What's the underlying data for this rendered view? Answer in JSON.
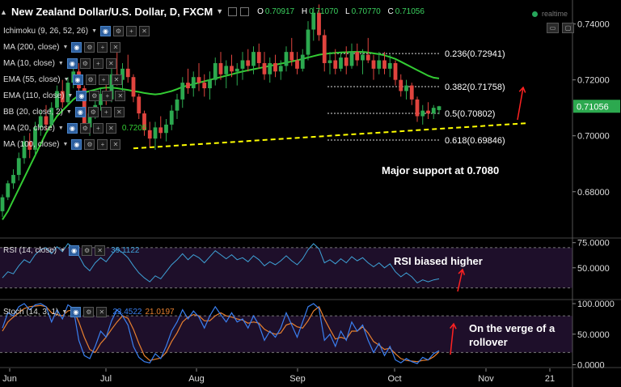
{
  "header": {
    "symbol": "New Zealand Dollar/U.S. Dollar, D, FXCM",
    "open_label": "O",
    "open": "0.70917",
    "high_label": "H",
    "high": "0.71070",
    "low_label": "L",
    "low": "0.70770",
    "close_label": "C",
    "close": "0.71056",
    "realtime": "realtime"
  },
  "indicators": [
    {
      "label": "Ichimoku (9, 26, 52, 26)",
      "value": ""
    },
    {
      "label": "MA (200, close)",
      "value": ""
    },
    {
      "label": "MA (10, close)",
      "value": ""
    },
    {
      "label": "EMA (55, close)",
      "value": ""
    },
    {
      "label": "EMA (110, close)",
      "value": ""
    },
    {
      "label": "BB (20, close, 2)",
      "value": ""
    },
    {
      "label": "MA (20, close)",
      "value": "0.7205"
    },
    {
      "label": "MA (100, close)",
      "value": ""
    }
  ],
  "colors": {
    "up": "#2ca94f",
    "down": "#e0443e",
    "ma": "#33cc33",
    "support": "#ffff00",
    "arrow": "#ff2222",
    "rsi": "#3ea2d7",
    "stoch_k": "#3a7ff0",
    "stoch_d": "#e8802f",
    "band": "#1e0f2a",
    "price_badge": "#2ca94f"
  },
  "annotations": {
    "support": "Major support at 0.7080",
    "rsi": "RSI biased higher",
    "stoch": "On the verge of a rollover"
  },
  "rsi_panel": {
    "label": "RSI (14, close)",
    "value": "39.1122"
  },
  "stoch_panel": {
    "label": "Stoch (14, 3, 1)",
    "value_k": "23.4522",
    "value_d": "21.0197"
  },
  "chart_data": [
    {
      "type": "candlestick",
      "title": "New Zealand Dollar/U.S. Dollar, D, FXCM",
      "x_ticks": [
        "Jun",
        "Jul",
        "Aug",
        "Sep",
        "Oct",
        "Nov",
        "21"
      ],
      "ylim": [
        0.664,
        0.748
      ],
      "y_ticks": [
        0.68,
        0.7,
        0.72,
        0.74
      ],
      "y_tick_labels": [
        "0.68000",
        "0.70000",
        "0.72000",
        "0.74000"
      ],
      "last_price": 0.71056,
      "last_price_label": "0.71056",
      "candles": [
        [
          0.673,
          0.679,
          0.671,
          0.678
        ],
        [
          0.678,
          0.684,
          0.677,
          0.683
        ],
        [
          0.683,
          0.688,
          0.681,
          0.686
        ],
        [
          0.686,
          0.694,
          0.684,
          0.692
        ],
        [
          0.692,
          0.7,
          0.69,
          0.698
        ],
        [
          0.698,
          0.701,
          0.692,
          0.695
        ],
        [
          0.695,
          0.705,
          0.693,
          0.703
        ],
        [
          0.703,
          0.709,
          0.7,
          0.707
        ],
        [
          0.707,
          0.711,
          0.702,
          0.704
        ],
        [
          0.704,
          0.712,
          0.703,
          0.71
        ],
        [
          0.71,
          0.718,
          0.709,
          0.716
        ],
        [
          0.716,
          0.72,
          0.71,
          0.712
        ],
        [
          0.712,
          0.721,
          0.711,
          0.719
        ],
        [
          0.719,
          0.725,
          0.717,
          0.723
        ],
        [
          0.723,
          0.726,
          0.715,
          0.717
        ],
        [
          0.717,
          0.718,
          0.701,
          0.703
        ],
        [
          0.703,
          0.71,
          0.7,
          0.708
        ],
        [
          0.708,
          0.713,
          0.706,
          0.711
        ],
        [
          0.711,
          0.717,
          0.709,
          0.715
        ],
        [
          0.715,
          0.72,
          0.711,
          0.713
        ],
        [
          0.713,
          0.724,
          0.712,
          0.722
        ],
        [
          0.722,
          0.73,
          0.718,
          0.72
        ],
        [
          0.72,
          0.726,
          0.716,
          0.724
        ],
        [
          0.724,
          0.729,
          0.719,
          0.721
        ],
        [
          0.721,
          0.722,
          0.712,
          0.714
        ],
        [
          0.714,
          0.715,
          0.706,
          0.708
        ],
        [
          0.708,
          0.709,
          0.7,
          0.702
        ],
        [
          0.702,
          0.705,
          0.696,
          0.699
        ],
        [
          0.699,
          0.705,
          0.695,
          0.703
        ],
        [
          0.703,
          0.707,
          0.699,
          0.701
        ],
        [
          0.701,
          0.706,
          0.698,
          0.704
        ],
        [
          0.704,
          0.711,
          0.702,
          0.709
        ],
        [
          0.709,
          0.715,
          0.706,
          0.713
        ],
        [
          0.713,
          0.721,
          0.71,
          0.719
        ],
        [
          0.719,
          0.724,
          0.715,
          0.717
        ],
        [
          0.717,
          0.723,
          0.714,
          0.721
        ],
        [
          0.721,
          0.726,
          0.716,
          0.719
        ],
        [
          0.719,
          0.722,
          0.714,
          0.717
        ],
        [
          0.717,
          0.723,
          0.713,
          0.72
        ],
        [
          0.72,
          0.728,
          0.718,
          0.726
        ],
        [
          0.726,
          0.73,
          0.72,
          0.722
        ],
        [
          0.722,
          0.727,
          0.717,
          0.725
        ],
        [
          0.725,
          0.729,
          0.721,
          0.723
        ],
        [
          0.723,
          0.726,
          0.718,
          0.724
        ],
        [
          0.724,
          0.73,
          0.72,
          0.727
        ],
        [
          0.727,
          0.731,
          0.723,
          0.725
        ],
        [
          0.725,
          0.732,
          0.722,
          0.73
        ],
        [
          0.73,
          0.733,
          0.724,
          0.726
        ],
        [
          0.726,
          0.73,
          0.72,
          0.722
        ],
        [
          0.722,
          0.728,
          0.719,
          0.726
        ],
        [
          0.726,
          0.729,
          0.721,
          0.723
        ],
        [
          0.723,
          0.727,
          0.72,
          0.725
        ],
        [
          0.725,
          0.732,
          0.723,
          0.73
        ],
        [
          0.73,
          0.735,
          0.725,
          0.727
        ],
        [
          0.727,
          0.73,
          0.722,
          0.724
        ],
        [
          0.724,
          0.731,
          0.723,
          0.729
        ],
        [
          0.729,
          0.741,
          0.727,
          0.738
        ],
        [
          0.738,
          0.746,
          0.734,
          0.744
        ],
        [
          0.744,
          0.747,
          0.734,
          0.736
        ],
        [
          0.736,
          0.738,
          0.723,
          0.726
        ],
        [
          0.726,
          0.73,
          0.722,
          0.727
        ],
        [
          0.727,
          0.731,
          0.722,
          0.724
        ],
        [
          0.724,
          0.73,
          0.723,
          0.728
        ],
        [
          0.728,
          0.732,
          0.722,
          0.725
        ],
        [
          0.725,
          0.733,
          0.724,
          0.73
        ],
        [
          0.73,
          0.733,
          0.725,
          0.727
        ],
        [
          0.727,
          0.731,
          0.722,
          0.729
        ],
        [
          0.729,
          0.735,
          0.726,
          0.727
        ],
        [
          0.727,
          0.729,
          0.72,
          0.724
        ],
        [
          0.724,
          0.73,
          0.722,
          0.727
        ],
        [
          0.727,
          0.73,
          0.722,
          0.724
        ],
        [
          0.724,
          0.729,
          0.721,
          0.726
        ],
        [
          0.726,
          0.727,
          0.718,
          0.72
        ],
        [
          0.72,
          0.722,
          0.714,
          0.716
        ],
        [
          0.716,
          0.72,
          0.713,
          0.718
        ],
        [
          0.718,
          0.719,
          0.711,
          0.713
        ],
        [
          0.713,
          0.714,
          0.705,
          0.707
        ],
        [
          0.707,
          0.711,
          0.704,
          0.709
        ],
        [
          0.709,
          0.712,
          0.706,
          0.708
        ],
        [
          0.708,
          0.711,
          0.706,
          0.71
        ],
        [
          0.7092,
          0.7107,
          0.7077,
          0.71056
        ]
      ],
      "ma20": [
        0.67,
        0.673,
        0.677,
        0.681,
        0.685,
        0.689,
        0.693,
        0.697,
        0.701,
        0.704,
        0.707,
        0.709,
        0.711,
        0.713,
        0.7145,
        0.7155,
        0.716,
        0.7165,
        0.717,
        0.7172,
        0.7172,
        0.717,
        0.7167,
        0.7164,
        0.716,
        0.7157,
        0.7153,
        0.715,
        0.7148,
        0.715,
        0.7155,
        0.716,
        0.7167,
        0.7175,
        0.718,
        0.7185,
        0.719,
        0.7195,
        0.72,
        0.7205,
        0.721,
        0.7215,
        0.722,
        0.7225,
        0.723,
        0.7234,
        0.7238,
        0.7242,
        0.7246,
        0.725,
        0.7254,
        0.7258,
        0.7262,
        0.7266,
        0.727,
        0.7275,
        0.728,
        0.7285,
        0.729,
        0.7293,
        0.7295,
        0.7297,
        0.7298,
        0.7299,
        0.73,
        0.73,
        0.73,
        0.7298,
        0.7295,
        0.7292,
        0.7288,
        0.7282,
        0.7275,
        0.7265,
        0.7255,
        0.7245,
        0.7235,
        0.7225,
        0.7215,
        0.7208,
        0.7205
      ],
      "fibonacci": [
        {
          "label": "0.236(0.72941)",
          "value": 0.72941
        },
        {
          "label": "0.382(0.71758)",
          "value": 0.71758
        },
        {
          "label": "0.5(0.70802)",
          "value": 0.70802
        },
        {
          "label": "0.618(0.69846)",
          "value": 0.69846
        }
      ],
      "support_line": {
        "from": {
          "candle": 24,
          "price": 0.6955
        },
        "to": {
          "candle": 96,
          "price": 0.7045
        }
      }
    },
    {
      "type": "line",
      "title": "RSI (14, close)",
      "ylim": [
        20,
        78
      ],
      "y_ticks": [
        50,
        75
      ],
      "y_tick_labels": [
        "50.0000",
        "75.0000"
      ],
      "band": [
        30,
        70
      ],
      "series": [
        {
          "name": "RSI (14, close)",
          "values": [
            40,
            46,
            44,
            52,
            58,
            55,
            63,
            68,
            70,
            64,
            71,
            66,
            74,
            70,
            62,
            52,
            47,
            55,
            60,
            56,
            63,
            69,
            65,
            60,
            52,
            45,
            40,
            36,
            42,
            39,
            46,
            53,
            58,
            64,
            58,
            63,
            60,
            55,
            61,
            67,
            63,
            59,
            63,
            58,
            60,
            56,
            62,
            58,
            52,
            56,
            53,
            57,
            62,
            57,
            53,
            59,
            68,
            74,
            69,
            55,
            58,
            54,
            59,
            55,
            61,
            57,
            60,
            55,
            51,
            55,
            50,
            54,
            46,
            41,
            45,
            41,
            35,
            38,
            36,
            38,
            39
          ]
        }
      ]
    },
    {
      "type": "line",
      "title": "Stoch (14, 3, 1)",
      "ylim": [
        -2,
        104
      ],
      "y_ticks": [
        0,
        50,
        100
      ],
      "y_tick_labels": [
        "0.0000",
        "50.0000",
        "100.0000"
      ],
      "band": [
        20,
        80
      ],
      "series": [
        {
          "name": "%K",
          "values": [
            60,
            85,
            80,
            95,
            100,
            90,
            98,
            100,
            95,
            70,
            90,
            75,
            98,
            92,
            40,
            15,
            10,
            30,
            55,
            45,
            72,
            90,
            80,
            65,
            30,
            12,
            5,
            3,
            18,
            10,
            30,
            55,
            70,
            90,
            75,
            88,
            78,
            60,
            80,
            95,
            82,
            70,
            85,
            70,
            75,
            60,
            80,
            65,
            40,
            55,
            45,
            60,
            85,
            65,
            45,
            70,
            95,
            100,
            92,
            40,
            50,
            30,
            55,
            40,
            70,
            55,
            65,
            40,
            20,
            35,
            15,
            30,
            8,
            3,
            10,
            5,
            2,
            12,
            8,
            18,
            23
          ]
        },
        {
          "name": "%D",
          "values": [
            55,
            70,
            78,
            85,
            92,
            95,
            96,
            97,
            95,
            85,
            82,
            80,
            88,
            90,
            70,
            45,
            25,
            20,
            35,
            45,
            58,
            70,
            80,
            76,
            58,
            35,
            15,
            7,
            9,
            11,
            20,
            38,
            52,
            70,
            78,
            82,
            80,
            72,
            72,
            80,
            85,
            80,
            78,
            75,
            73,
            68,
            70,
            68,
            58,
            53,
            50,
            52,
            65,
            68,
            62,
            60,
            72,
            88,
            95,
            75,
            58,
            42,
            45,
            42,
            55,
            55,
            62,
            52,
            38,
            32,
            25,
            27,
            18,
            10,
            7,
            6,
            5,
            7,
            8,
            13,
            21
          ]
        }
      ]
    }
  ]
}
